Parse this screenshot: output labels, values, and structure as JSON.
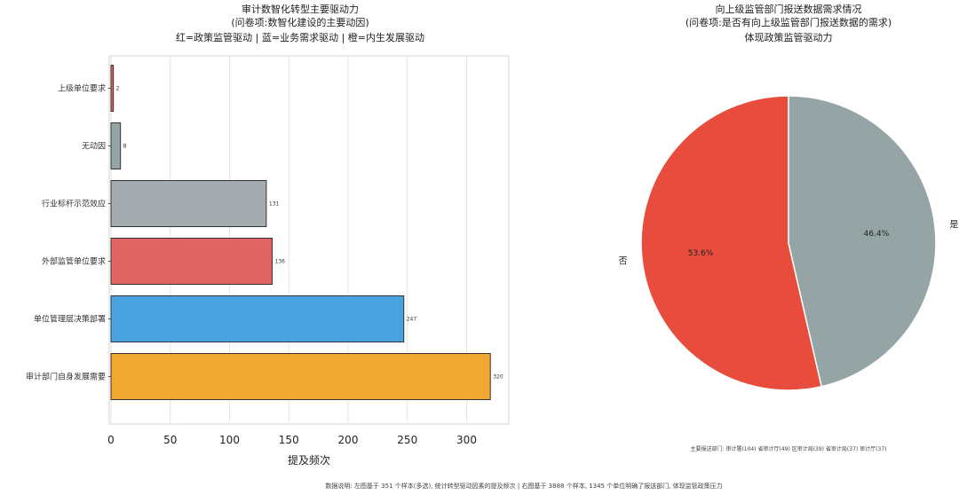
{
  "left_chart": {
    "title_lines": [
      "审计数智化转型主要驱动力",
      "(问卷项:数智化建设的主要动因)",
      "红=政策监管驱动 | 蓝=业务需求驱动 | 橙=内生发展驱动"
    ],
    "xlabel": "提及频次"
  },
  "right_chart": {
    "title_lines": [
      "向上级监管部门报送数据需求情况",
      "(问卷项:是否有向上级监管部门报送数据的需求)",
      "体现政策监管驱动力"
    ],
    "footer": "主要报送部门: 审计署(104) 省审计厅(49) 区审计局(39) 省审计局(37) 审计厅(37)"
  },
  "bottom_note": "数据说明: 左图基于 351 个样本(多选), 统计转型驱动因素的提及频次 | 右图基于 3888 个样本, 1345 个单位明确了报送部门, 体现监管政策压力",
  "chart_data": [
    {
      "type": "bar",
      "orientation": "horizontal",
      "categories": [
        "上级单位要求",
        "无动因",
        "行业标杆示范效应",
        "外部监管单位要求",
        "单位管理层决策部署",
        "审计部门自身发展需要"
      ],
      "values": [
        2,
        8,
        131,
        136,
        247,
        320
      ],
      "colors": [
        "#e8605c",
        "#95a5a6",
        "#a4acb0",
        "#e06464",
        "#4aa3df",
        "#f0a830"
      ],
      "xlim": [
        0,
        340
      ],
      "xticks": [
        0,
        50,
        100,
        150,
        200,
        250,
        300
      ],
      "xlabel": "提及频次",
      "grid": true
    },
    {
      "type": "pie",
      "labels": [
        "否",
        "是"
      ],
      "values": [
        53.6,
        46.4
      ],
      "display": [
        "53.6%",
        "46.4%"
      ],
      "colors": [
        "#e74c3c",
        "#95a5a6"
      ]
    }
  ]
}
